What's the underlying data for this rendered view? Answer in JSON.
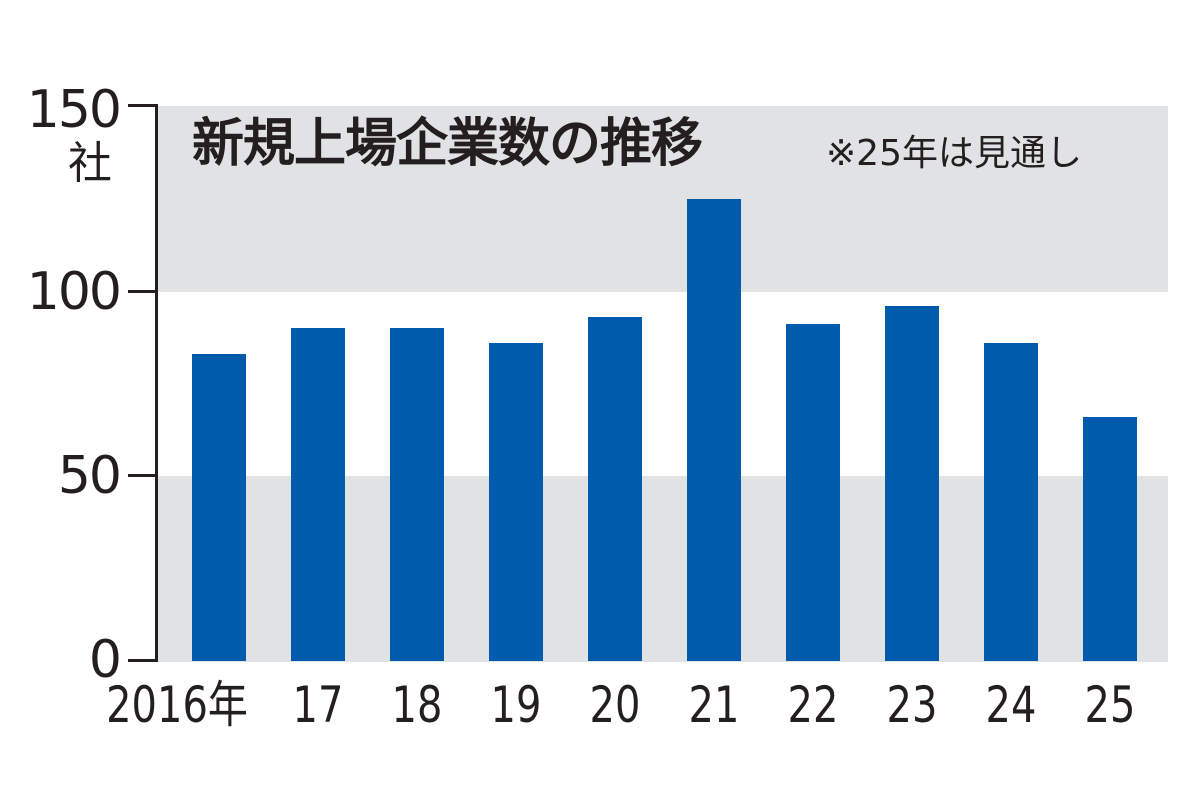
{
  "chart_data": {
    "type": "bar",
    "title": "新規上場企業数の推移",
    "note": "※25年は見通し",
    "xlabel": "",
    "ylabel": "社",
    "ylim": [
      0,
      150
    ],
    "yticks": [
      "0",
      "50",
      "100",
      "150"
    ],
    "categories": [
      "2016年",
      "17",
      "18",
      "19",
      "20",
      "21",
      "22",
      "23",
      "24",
      "25"
    ],
    "values": [
      83,
      90,
      90,
      86,
      93,
      125,
      91,
      96,
      86,
      66
    ],
    "colors": {
      "bar": "#005bac",
      "band": "#e1e2e4",
      "axis": "#231f20"
    },
    "grid": "alternating horizontal bands (0-50 and 100-150 shaded)",
    "legend": "none"
  }
}
